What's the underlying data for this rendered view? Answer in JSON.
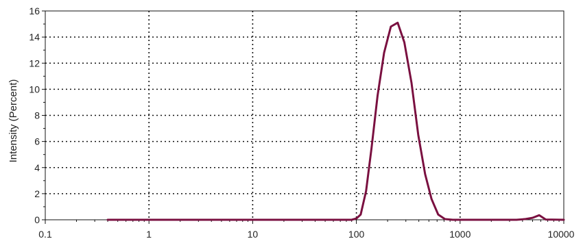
{
  "chart_data": {
    "type": "line",
    "title": "",
    "xlabel": "",
    "ylabel": "Intensity (Percent)",
    "xscale": "log",
    "xlim": [
      0.1,
      10000
    ],
    "ylim": [
      0,
      16
    ],
    "x_ticks": [
      0.1,
      1,
      10,
      100,
      1000,
      10000
    ],
    "x_tick_labels": [
      "0.1",
      "1",
      "10",
      "100",
      "1000",
      "10000"
    ],
    "y_ticks": [
      0,
      2,
      4,
      6,
      8,
      10,
      12,
      14,
      16
    ],
    "y_tick_labels": [
      "0",
      "2",
      "4",
      "6",
      "8",
      "10",
      "12",
      "14",
      "16"
    ],
    "grid": true,
    "legend": "none",
    "series": [
      {
        "color": "#7a1040",
        "points": [
          [
            0.4,
            0
          ],
          [
            90,
            0
          ],
          [
            100,
            0.1
          ],
          [
            110,
            0.4
          ],
          [
            124,
            2.2
          ],
          [
            140,
            5.5
          ],
          [
            160,
            9.5
          ],
          [
            185,
            12.8
          ],
          [
            215,
            14.8
          ],
          [
            250,
            15.1
          ],
          [
            290,
            13.6
          ],
          [
            340,
            10.5
          ],
          [
            395,
            6.5
          ],
          [
            460,
            3.5
          ],
          [
            530,
            1.6
          ],
          [
            615,
            0.4
          ],
          [
            715,
            0.05
          ],
          [
            850,
            0
          ],
          [
            3500,
            0
          ],
          [
            4200,
            0.05
          ],
          [
            5000,
            0.15
          ],
          [
            5800,
            0.35
          ],
          [
            6700,
            0.02
          ],
          [
            10000,
            0
          ]
        ]
      }
    ]
  }
}
